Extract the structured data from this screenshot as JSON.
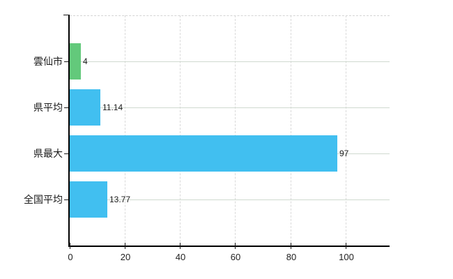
{
  "chart_data": {
    "type": "bar",
    "orientation": "horizontal",
    "title": "",
    "xlabel": "",
    "ylabel": "",
    "categories": [
      "雲仙市",
      "県平均",
      "県最大",
      "全国平均"
    ],
    "values": [
      4,
      11.14,
      97,
      13.77
    ],
    "value_labels": [
      "4",
      "11.14",
      "97",
      "13.77"
    ],
    "bar_colors": [
      "#63c97b",
      "#41bff0",
      "#41bff0",
      "#41bff0"
    ],
    "x_ticks": [
      0,
      20,
      40,
      60,
      80,
      100
    ],
    "x_tick_labels": [
      "0",
      "20",
      "40",
      "60",
      "80",
      "100"
    ],
    "xlim": [
      0,
      116
    ],
    "grid": "on",
    "legend": "none"
  },
  "colors": {
    "background": "#ffffff",
    "bar_green": "#63c97b",
    "bar_blue": "#41bff0",
    "axis": "#000000",
    "gridline_horizontal": "#cfd9cf",
    "gridline_vertical": "#d9d9d9",
    "text": "#1a1a1a"
  }
}
